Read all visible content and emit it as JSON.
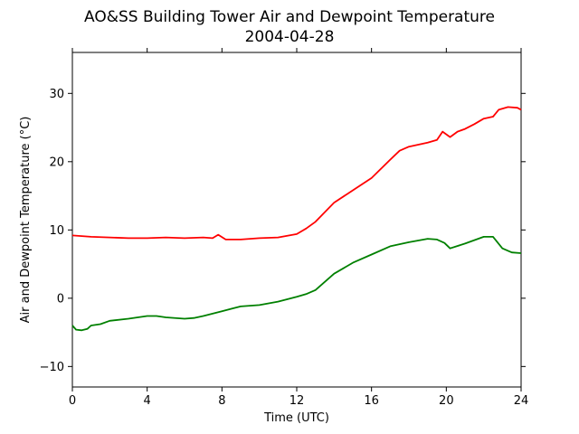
{
  "chart_data": {
    "type": "line",
    "title": "AO&SS Building Tower Air and Dewpoint Temperature",
    "subtitle": "2004-04-28",
    "xlabel": "Time (UTC)",
    "ylabel": "Air and Dewpoint Temperature (°C)",
    "xlim": [
      0,
      24
    ],
    "ylim": [
      -13,
      36
    ],
    "xticks": [
      0,
      4,
      8,
      12,
      16,
      20,
      24
    ],
    "yticks": [
      -10,
      0,
      10,
      20,
      30
    ],
    "ytick_labels": [
      "−10",
      "0",
      "10",
      "20",
      "30"
    ],
    "grid": false,
    "series": [
      {
        "color": "#ff0000",
        "x": [
          0,
          1,
          2,
          3,
          4,
          5,
          6,
          7,
          7.5,
          7.8,
          8.2,
          9,
          10,
          11,
          12,
          12.5,
          13,
          14,
          15,
          16,
          17,
          17.5,
          18,
          19,
          19.5,
          19.8,
          20.2,
          20.6,
          21,
          21.5,
          22,
          22.5,
          22.8,
          23.3,
          23.8,
          24
        ],
        "y": [
          9.2,
          9.0,
          8.9,
          8.8,
          8.8,
          8.9,
          8.8,
          8.9,
          8.8,
          9.3,
          8.6,
          8.6,
          8.8,
          8.9,
          9.4,
          10.2,
          11.2,
          14.0,
          15.8,
          17.6,
          20.3,
          21.6,
          22.2,
          22.8,
          23.2,
          24.4,
          23.6,
          24.4,
          24.8,
          25.5,
          26.3,
          26.6,
          27.6,
          28.0,
          27.9,
          27.6
        ]
      },
      {
        "color": "#008000",
        "x": [
          0,
          0.2,
          0.5,
          0.8,
          1,
          1.5,
          2,
          3,
          4,
          4.5,
          5,
          6,
          6.5,
          7,
          8,
          9,
          10,
          11,
          12,
          12.5,
          13,
          14,
          15,
          16,
          17,
          18,
          19,
          19.5,
          19.9,
          20.2,
          21,
          22,
          22.5,
          23,
          23.5,
          24
        ],
        "y": [
          -4.0,
          -4.6,
          -4.7,
          -4.5,
          -4.0,
          -3.8,
          -3.3,
          -3.0,
          -2.6,
          -2.6,
          -2.8,
          -3.0,
          -2.9,
          -2.6,
          -1.9,
          -1.2,
          -1.0,
          -0.5,
          0.2,
          0.6,
          1.2,
          3.6,
          5.2,
          6.4,
          7.6,
          8.2,
          8.7,
          8.6,
          8.1,
          7.3,
          8.0,
          9.0,
          9.0,
          7.3,
          6.7,
          6.6
        ]
      }
    ]
  }
}
